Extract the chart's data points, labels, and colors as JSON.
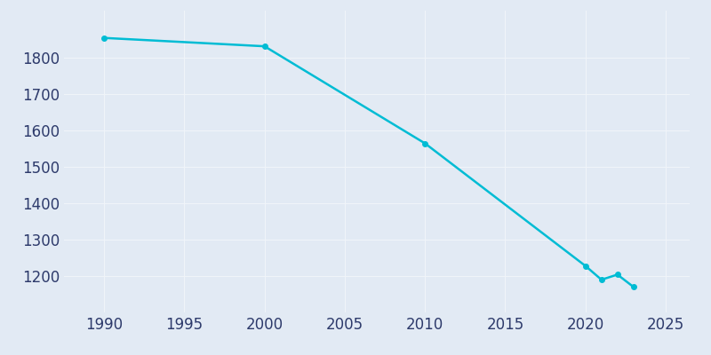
{
  "years": [
    1990,
    2000,
    2010,
    2020,
    2021,
    2022,
    2023
  ],
  "population": [
    1855,
    1832,
    1565,
    1228,
    1190,
    1204,
    1170
  ],
  "line_color": "#00BCD4",
  "marker_style": "o",
  "marker_size": 4,
  "line_width": 1.8,
  "background_color": "#e2eaf4",
  "grid_color": "#f0f4f9",
  "xlabel": "",
  "ylabel": "",
  "xlim": [
    1987.5,
    2026.5
  ],
  "ylim": [
    1100,
    1930
  ],
  "yticks": [
    1200,
    1300,
    1400,
    1500,
    1600,
    1700,
    1800
  ],
  "xticks": [
    1990,
    1995,
    2000,
    2005,
    2010,
    2015,
    2020,
    2025
  ],
  "tick_label_color": "#2d3a6b",
  "tick_fontsize": 12
}
